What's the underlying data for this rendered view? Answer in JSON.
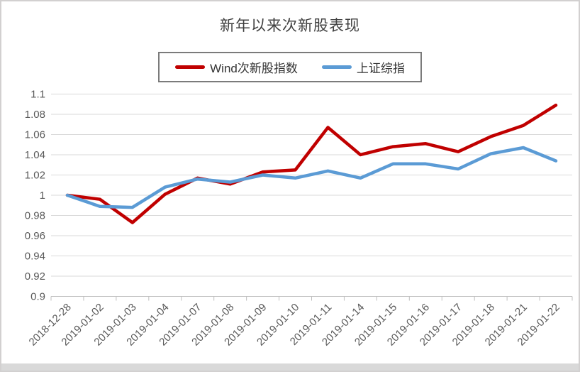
{
  "window": {
    "background": "#FFFFFF",
    "border_color": "#D2D0D0",
    "bottom_strip_color": "#D9D9D9"
  },
  "chart_data": {
    "type": "line",
    "title": "新年以来次新股表现",
    "xlabel": "",
    "ylabel": "",
    "categories": [
      "2018-12-28",
      "2019-01-02",
      "2019-01-03",
      "2019-01-04",
      "2019-01-07",
      "2019-01-08",
      "2019-01-09",
      "2019-01-10",
      "2019-01-11",
      "2019-01-14",
      "2019-01-15",
      "2019-01-16",
      "2019-01-17",
      "2019-01-18",
      "2019-01-21",
      "2019-01-22"
    ],
    "series": [
      {
        "name": "Wind次新股指数",
        "color": "#C00000",
        "values": [
          1.0,
          0.996,
          0.973,
          1.001,
          1.017,
          1.011,
          1.023,
          1.025,
          1.067,
          1.04,
          1.048,
          1.051,
          1.043,
          1.058,
          1.069,
          1.089
        ]
      },
      {
        "name": "上证综指",
        "color": "#5B9BD5",
        "values": [
          1.0,
          0.989,
          0.988,
          1.008,
          1.016,
          1.013,
          1.02,
          1.017,
          1.024,
          1.017,
          1.031,
          1.031,
          1.026,
          1.041,
          1.047,
          1.034
        ]
      }
    ],
    "ylim": [
      0.9,
      1.1
    ],
    "y_tick_labels": [
      "1.1",
      "1.08",
      "1.06",
      "1.04",
      "1.02",
      "1",
      "0.98",
      "0.96",
      "0.94",
      "0.92",
      "0.9"
    ],
    "grid": true,
    "legend_position": "top-center",
    "x_label_rotation_deg": 45,
    "colors": {
      "grid": "#D9D9D9",
      "axis": "#BFBFBF",
      "tick_label": "#595959",
      "title": "#404040"
    }
  }
}
